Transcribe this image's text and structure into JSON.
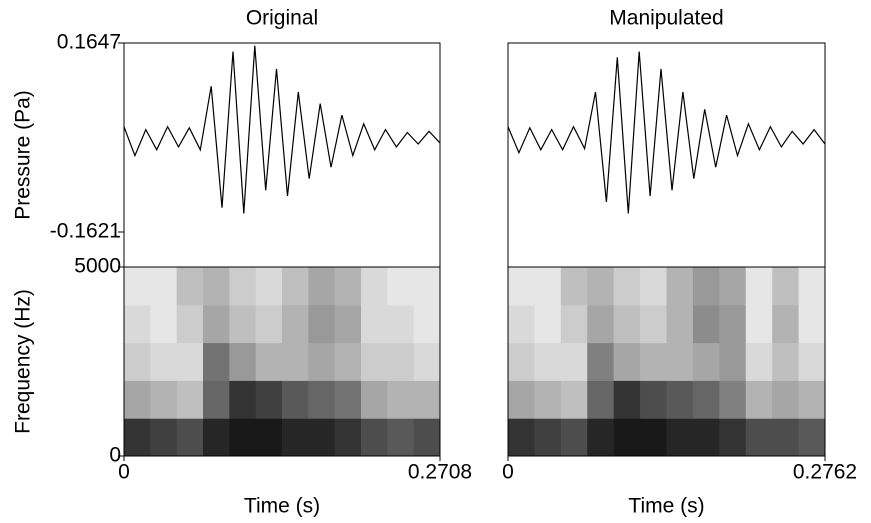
{
  "chart_data": [
    {
      "type": "line",
      "title": "Original",
      "ylabel": "Pressure (Pa)",
      "color": "#000000",
      "x": [
        0,
        0.0093,
        0.0187,
        0.028,
        0.0374,
        0.0467,
        0.056,
        0.0654,
        0.0747,
        0.084,
        0.0934,
        0.1027,
        0.1121,
        0.1214,
        0.1307,
        0.1401,
        0.1494,
        0.1587,
        0.1681,
        0.1774,
        0.1867,
        0.1961,
        0.2054,
        0.2148,
        0.2241,
        0.2334,
        0.2428,
        0.2521,
        0.2614,
        0.2708
      ],
      "values": [
        0.02,
        -0.03,
        0.015,
        -0.02,
        0.02,
        -0.015,
        0.018,
        -0.02,
        0.09,
        -0.12,
        0.15,
        -0.13,
        0.16,
        -0.09,
        0.12,
        -0.1,
        0.08,
        -0.07,
        0.06,
        -0.05,
        0.04,
        -0.03,
        0.025,
        -0.02,
        0.015,
        -0.015,
        0.01,
        -0.01,
        0.012,
        -0.008
      ],
      "xlim": [
        0,
        0.2708
      ],
      "ylim": [
        -0.2226,
        0.1647
      ],
      "yticks": [
        0.1647,
        -0.1621
      ]
    },
    {
      "type": "heatmap",
      "ylabel": "Frequency (Hz)",
      "xlabel": "Time (s)",
      "xlim": [
        0,
        0.2708
      ],
      "ylim": [
        0,
        5000
      ],
      "yticks": [
        5000,
        0
      ],
      "xticks": [
        0,
        0.2708
      ],
      "values": [
        [
          0.8,
          0.75,
          0.7,
          0.85,
          0.9,
          0.9,
          0.85,
          0.85,
          0.8,
          0.7,
          0.65,
          0.7
        ],
        [
          0.35,
          0.3,
          0.25,
          0.6,
          0.8,
          0.75,
          0.65,
          0.6,
          0.55,
          0.35,
          0.3,
          0.3
        ],
        [
          0.2,
          0.15,
          0.15,
          0.55,
          0.4,
          0.3,
          0.3,
          0.35,
          0.3,
          0.2,
          0.2,
          0.15
        ],
        [
          0.15,
          0.1,
          0.2,
          0.35,
          0.25,
          0.2,
          0.3,
          0.4,
          0.35,
          0.15,
          0.15,
          0.1
        ],
        [
          0.1,
          0.1,
          0.25,
          0.3,
          0.2,
          0.15,
          0.25,
          0.35,
          0.3,
          0.15,
          0.1,
          0.1
        ]
      ]
    },
    {
      "type": "line",
      "title": "Manipulated",
      "color": "#000000",
      "x": [
        0,
        0.0095,
        0.019,
        0.0286,
        0.0381,
        0.0476,
        0.0571,
        0.0667,
        0.0762,
        0.0857,
        0.0952,
        0.1048,
        0.1143,
        0.1238,
        0.1333,
        0.1429,
        0.1524,
        0.1619,
        0.1714,
        0.181,
        0.1905,
        0.2,
        0.2095,
        0.219,
        0.2286,
        0.2381,
        0.2476,
        0.2571,
        0.2667,
        0.2762
      ],
      "values": [
        0.02,
        -0.025,
        0.018,
        -0.02,
        0.015,
        -0.02,
        0.02,
        -0.018,
        0.08,
        -0.11,
        0.14,
        -0.13,
        0.15,
        -0.1,
        0.12,
        -0.09,
        0.08,
        -0.07,
        0.05,
        -0.05,
        0.04,
        -0.03,
        0.025,
        -0.02,
        0.02,
        -0.015,
        0.012,
        -0.01,
        0.015,
        -0.01
      ],
      "xlim": [
        0,
        0.2762
      ],
      "ylim": [
        -0.2226,
        0.1647
      ]
    },
    {
      "type": "heatmap",
      "xlabel": "Time (s)",
      "xlim": [
        0,
        0.2762
      ],
      "ylim": [
        0,
        5000
      ],
      "xticks": [
        0,
        0.2762
      ],
      "values": [
        [
          0.8,
          0.75,
          0.7,
          0.85,
          0.9,
          0.9,
          0.85,
          0.85,
          0.8,
          0.7,
          0.7,
          0.65
        ],
        [
          0.35,
          0.3,
          0.25,
          0.6,
          0.8,
          0.7,
          0.65,
          0.6,
          0.5,
          0.3,
          0.35,
          0.3
        ],
        [
          0.2,
          0.15,
          0.15,
          0.5,
          0.35,
          0.3,
          0.3,
          0.35,
          0.4,
          0.15,
          0.25,
          0.15
        ],
        [
          0.15,
          0.1,
          0.2,
          0.35,
          0.25,
          0.2,
          0.3,
          0.45,
          0.4,
          0.1,
          0.3,
          0.1
        ],
        [
          0.1,
          0.1,
          0.25,
          0.3,
          0.2,
          0.15,
          0.3,
          0.4,
          0.35,
          0.1,
          0.25,
          0.1
        ]
      ]
    }
  ]
}
